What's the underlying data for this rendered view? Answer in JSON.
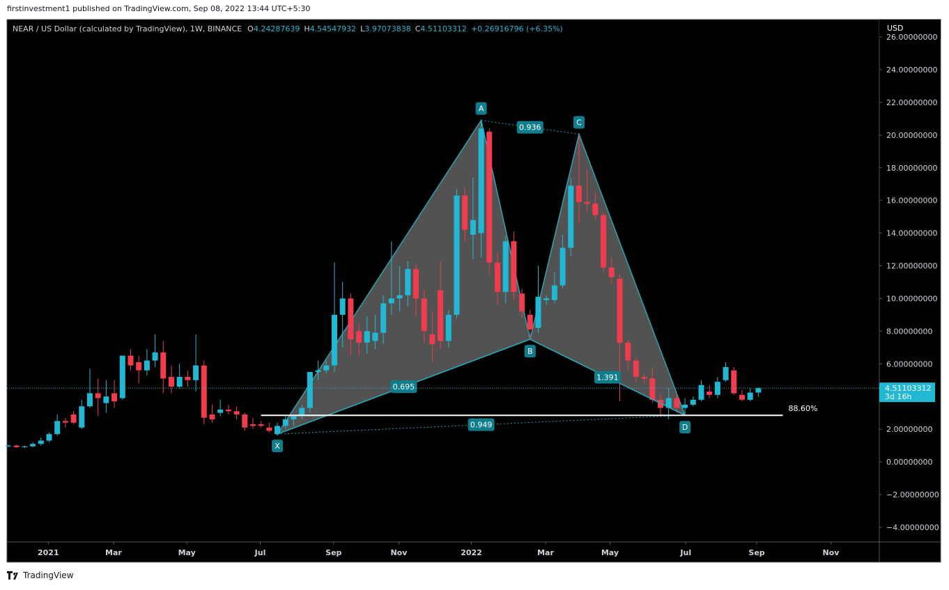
{
  "header": {
    "published": "firstinvestment1 published on TradingView.com, Sep 08, 2022 13:44 UTC+5:30"
  },
  "footer": {
    "brand": "TradingView"
  },
  "chart_data": {
    "type": "candlestick",
    "symbol": "NEAR / US Dollar (calculated by TradingView), 1W, BINANCE",
    "legend": {
      "open_label": "O",
      "open": 4.24287639,
      "high_label": "H",
      "high": 4.54547932,
      "low_label": "L",
      "low": 3.97073838,
      "close_label": "C",
      "close": 4.51103312,
      "change": "+0.26916796 (+6.35%)"
    },
    "currency": "USD",
    "up_color": "#22b8d4",
    "down_color": "#ef3d4f",
    "xlim": [
      -0.17,
      106.84
    ],
    "xticks": [
      {
        "value": 4.9,
        "label": "2021"
      },
      {
        "value": 12.9,
        "label": "Mar"
      },
      {
        "value": 21.9,
        "label": "May"
      },
      {
        "value": 30.9,
        "label": "Jul"
      },
      {
        "value": 39.9,
        "label": "Sep"
      },
      {
        "value": 47.9,
        "label": "Nov"
      },
      {
        "value": 56.8,
        "label": "2022"
      },
      {
        "value": 65.9,
        "label": "Mar"
      },
      {
        "value": 73.8,
        "label": "May"
      },
      {
        "value": 83.1,
        "label": "Jul"
      },
      {
        "value": 91.8,
        "label": "Sep"
      },
      {
        "value": 100.9,
        "label": "Nov"
      }
    ],
    "ylim": [
      -4.9,
      27.07
    ],
    "yticks": [
      {
        "value": 26,
        "label": "26.00000000"
      },
      {
        "value": 24,
        "label": "24.00000000"
      },
      {
        "value": 22,
        "label": "22.00000000"
      },
      {
        "value": 20,
        "label": "20.00000000"
      },
      {
        "value": 18,
        "label": "18.00000000"
      },
      {
        "value": 16,
        "label": "16.00000000"
      },
      {
        "value": 14,
        "label": "14.00000000"
      },
      {
        "value": 12,
        "label": "12.00000000"
      },
      {
        "value": 10,
        "label": "10.00000000"
      },
      {
        "value": 8,
        "label": "8.00000000"
      },
      {
        "value": 6,
        "label": "6.00000000"
      },
      {
        "value": 4,
        "label": "4.00000000"
      },
      {
        "value": 2,
        "label": "2.00000000"
      },
      {
        "value": 0,
        "label": "0.00000000"
      },
      {
        "value": -2,
        "label": "−2.00000000"
      },
      {
        "value": -4,
        "label": "−4.00000000"
      }
    ],
    "ohlc": [
      [
        0.95,
        1.05,
        0.9,
        1.0
      ],
      [
        1.0,
        1.05,
        0.85,
        0.9
      ],
      [
        0.9,
        1.0,
        0.85,
        0.95
      ],
      [
        0.95,
        1.2,
        0.9,
        1.1
      ],
      [
        1.1,
        1.5,
        1.0,
        1.3
      ],
      [
        1.3,
        1.8,
        1.2,
        1.7
      ],
      [
        1.7,
        2.9,
        1.6,
        2.5
      ],
      [
        2.5,
        2.7,
        2.1,
        2.4
      ],
      [
        2.9,
        3.1,
        2.3,
        2.4
      ],
      [
        2.1,
        3.8,
        2.0,
        3.4
      ],
      [
        3.4,
        5.7,
        3.3,
        4.2
      ],
      [
        4.2,
        5.1,
        2.8,
        3.9
      ],
      [
        3.6,
        5.0,
        3.0,
        4.0
      ],
      [
        4.2,
        5.0,
        3.3,
        3.7
      ],
      [
        3.9,
        6.5,
        3.8,
        6.5
      ],
      [
        6.5,
        6.9,
        5.6,
        5.9
      ],
      [
        6.1,
        6.5,
        4.8,
        5.6
      ],
      [
        5.6,
        6.9,
        5.3,
        6.2
      ],
      [
        6.2,
        7.8,
        5.8,
        6.7
      ],
      [
        6.7,
        7.4,
        4.2,
        5.1
      ],
      [
        5.2,
        5.9,
        4.2,
        4.6
      ],
      [
        4.6,
        6.0,
        4.5,
        5.2
      ],
      [
        5.2,
        5.6,
        4.6,
        5.0
      ],
      [
        5.0,
        7.8,
        4.3,
        5.9
      ],
      [
        5.9,
        6.2,
        2.3,
        2.7
      ],
      [
        2.9,
        3.5,
        2.4,
        2.6
      ],
      [
        3.0,
        3.8,
        2.8,
        3.2
      ],
      [
        3.2,
        3.5,
        2.9,
        3.1
      ],
      [
        3.1,
        3.4,
        2.6,
        2.9
      ],
      [
        2.9,
        3.0,
        1.9,
        2.1
      ],
      [
        2.3,
        2.7,
        2.0,
        2.2
      ],
      [
        2.3,
        2.5,
        2.1,
        2.2
      ],
      [
        2.1,
        2.4,
        1.8,
        1.9
      ],
      [
        1.7,
        2.4,
        1.6,
        2.2
      ],
      [
        2.2,
        2.8,
        2.0,
        2.6
      ],
      [
        2.6,
        2.9,
        2.2,
        2.8
      ],
      [
        2.8,
        3.5,
        2.6,
        3.3
      ],
      [
        3.3,
        5.5,
        3.0,
        5.5
      ],
      [
        5.5,
        6.2,
        5.0,
        5.6
      ],
      [
        5.6,
        6.2,
        5.4,
        5.9
      ],
      [
        5.9,
        12.2,
        5.5,
        9.0
      ],
      [
        9.0,
        11.0,
        7.0,
        10.0
      ],
      [
        10.0,
        10.3,
        6.5,
        7.5
      ],
      [
        8.0,
        8.5,
        6.5,
        7.3
      ],
      [
        7.3,
        8.9,
        6.6,
        8.0
      ],
      [
        7.4,
        9.0,
        6.9,
        7.9
      ],
      [
        7.9,
        10.2,
        7.2,
        9.7
      ],
      [
        9.7,
        13.5,
        9.0,
        10.0
      ],
      [
        10.0,
        12.0,
        9.2,
        10.2
      ],
      [
        10.2,
        12.3,
        9.5,
        11.8
      ],
      [
        11.8,
        12.1,
        8.9,
        10.0
      ],
      [
        10.0,
        10.5,
        7.3,
        8.0
      ],
      [
        7.8,
        9.2,
        6.1,
        7.2
      ],
      [
        10.5,
        12.3,
        6.9,
        7.4
      ],
      [
        7.4,
        9.3,
        7.0,
        9.0
      ],
      [
        9.0,
        16.7,
        8.8,
        16.3
      ],
      [
        16.3,
        16.8,
        13.5,
        14.2
      ],
      [
        13.9,
        17.4,
        12.4,
        14.8
      ],
      [
        14.0,
        20.9,
        12.5,
        20.4
      ],
      [
        20.2,
        20.4,
        11.5,
        12.2
      ],
      [
        12.2,
        12.8,
        9.6,
        10.4
      ],
      [
        10.4,
        13.8,
        9.7,
        13.5
      ],
      [
        13.5,
        14.1,
        9.9,
        10.4
      ],
      [
        10.3,
        10.6,
        8.8,
        9.2
      ],
      [
        9.0,
        9.3,
        7.5,
        8.1
      ],
      [
        8.2,
        12.0,
        7.9,
        10.1
      ],
      [
        9.9,
        10.2,
        9.6,
        10.0
      ],
      [
        9.9,
        11.6,
        9.7,
        10.8
      ],
      [
        10.8,
        13.9,
        10.6,
        13.1
      ],
      [
        13.1,
        17.4,
        12.6,
        16.9
      ],
      [
        16.9,
        20.0,
        14.6,
        15.9
      ],
      [
        15.9,
        17.9,
        15.3,
        15.8
      ],
      [
        15.8,
        16.5,
        14.8,
        15.1
      ],
      [
        15.1,
        15.3,
        11.6,
        11.9
      ],
      [
        11.9,
        12.5,
        10.9,
        11.3
      ],
      [
        11.2,
        11.5,
        3.7,
        7.3
      ],
      [
        7.3,
        7.5,
        5.6,
        6.2
      ],
      [
        6.2,
        6.4,
        4.9,
        5.2
      ],
      [
        5.2,
        5.4,
        4.8,
        5.1
      ],
      [
        5.1,
        5.8,
        3.6,
        3.8
      ],
      [
        3.8,
        4.1,
        2.9,
        3.3
      ],
      [
        3.3,
        4.5,
        2.6,
        3.9
      ],
      [
        3.9,
        4.2,
        3.0,
        3.3
      ],
      [
        3.3,
        3.9,
        2.85,
        3.5
      ],
      [
        3.5,
        4.0,
        3.4,
        3.8
      ],
      [
        3.8,
        5.0,
        3.7,
        4.7
      ],
      [
        4.3,
        4.7,
        3.9,
        4.1
      ],
      [
        4.1,
        5.2,
        3.9,
        4.9
      ],
      [
        5.0,
        6.1,
        4.9,
        5.8
      ],
      [
        5.6,
        5.8,
        4.1,
        4.2
      ],
      [
        4.1,
        4.4,
        3.7,
        3.8
      ],
      [
        3.8,
        4.5,
        3.7,
        4.24
      ],
      [
        4.24287639,
        4.54547932,
        3.97073838,
        4.51103312
      ]
    ],
    "last_price": 4.51103312,
    "countdown": "3d 16h",
    "pattern": {
      "points": [
        {
          "label": "X",
          "x": 33,
          "y": 1.7
        },
        {
          "label": "A",
          "x": 58,
          "y": 20.9
        },
        {
          "label": "B",
          "x": 64,
          "y": 7.5
        },
        {
          "label": "C",
          "x": 70,
          "y": 20.05
        },
        {
          "label": "D",
          "x": 83,
          "y": 2.85
        }
      ],
      "ratios": [
        "0.695",
        "0.936",
        "1.391",
        "0.949"
      ]
    },
    "level": {
      "label": "88.60%",
      "value": 2.85,
      "x": [
        31,
        95
      ]
    }
  }
}
